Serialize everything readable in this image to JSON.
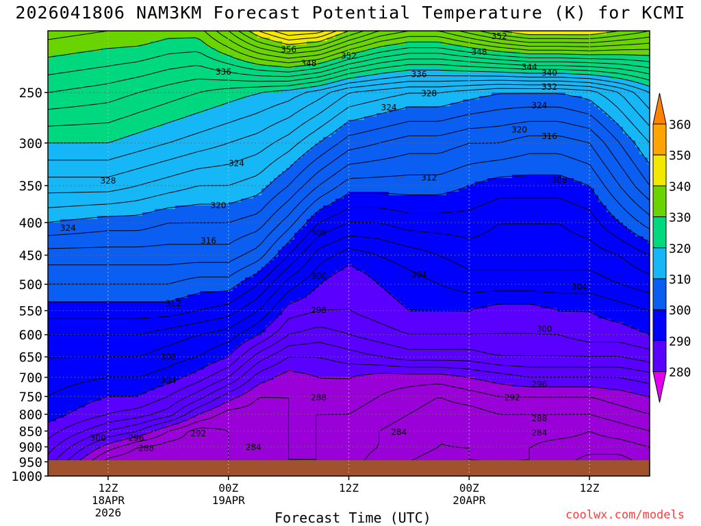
{
  "title": "2026041806 NAM3KM Forecast Potential Temperature (K) for KCMI",
  "credit": "coolwx.com/models",
  "chart_data": {
    "type": "heatmap",
    "title": "2026041806 NAM3KM Forecast Potential Temperature (K) for KCMI",
    "xlabel": "Forecast Time (UTC)",
    "ylabel": "",
    "y_scale": "log",
    "y_inverted": true,
    "ylim": [
      1000,
      200
    ],
    "xlim_hours": [
      0,
      60
    ],
    "y_ticks": [
      250,
      300,
      350,
      400,
      450,
      500,
      550,
      600,
      650,
      700,
      750,
      800,
      850,
      900,
      950,
      1000
    ],
    "x_ticks": [
      {
        "hour": 6,
        "label": [
          "12Z",
          "18APR",
          "2026"
        ]
      },
      {
        "hour": 18,
        "label": [
          "00Z",
          "19APR"
        ]
      },
      {
        "hour": 30,
        "label": [
          "12Z"
        ]
      },
      {
        "hour": 42,
        "label": [
          "00Z",
          "20APR"
        ]
      },
      {
        "hour": 54,
        "label": [
          "12Z"
        ]
      }
    ],
    "grid": true,
    "colorbar": {
      "levels": [
        280,
        290,
        300,
        310,
        320,
        330,
        340,
        350,
        360
      ],
      "labels": [
        "280",
        "290",
        "300",
        "310",
        "320",
        "330",
        "340",
        "350",
        "360"
      ],
      "colors": [
        "#9a00d8",
        "#5a00ff",
        "#0000ff",
        "#0a5ef2",
        "#16b7f6",
        "#00d880",
        "#6ad400",
        "#f2e800",
        "#ffa400"
      ],
      "below_color": "#e200ee",
      "above_color": "#ff8200"
    },
    "terrain_color": "#a0522d",
    "theta_field": {
      "hours": [
        0,
        6,
        9,
        12,
        15,
        18,
        21,
        24,
        27,
        30,
        33,
        36,
        39,
        42,
        45,
        48,
        51,
        54,
        57,
        60
      ],
      "pressure": [
        1000,
        950,
        900,
        850,
        800,
        750,
        700,
        650,
        600,
        550,
        500,
        450,
        400,
        350,
        300,
        250,
        200
      ],
      "theta": [
        [
          294,
          282,
          282,
          284,
          285,
          286,
          286,
          287,
          287,
          286,
          284,
          283,
          282,
          283,
          283,
          283,
          282,
          279,
          279,
          282
        ],
        [
          295,
          285,
          284,
          285,
          285,
          286,
          287,
          288,
          288,
          287,
          285,
          284,
          283,
          284,
          284,
          284,
          283,
          281,
          281,
          283
        ],
        [
          297,
          289,
          286,
          285,
          285,
          286,
          287,
          288,
          288,
          287,
          286,
          285,
          284,
          284,
          285,
          284,
          283,
          283,
          283,
          284
        ],
        [
          299,
          294,
          292,
          288,
          285,
          286,
          287,
          288,
          288,
          287,
          286,
          285,
          284,
          285,
          285,
          285,
          285,
          284,
          285,
          286
        ],
        [
          301,
          298,
          297,
          295,
          290,
          287,
          287,
          288,
          288,
          288,
          287,
          286,
          285,
          285,
          286,
          286,
          286,
          286,
          287,
          288
        ],
        [
          302,
          300,
          300,
          298,
          295,
          291,
          288,
          288,
          289,
          289,
          288,
          287,
          286,
          287,
          288,
          288,
          288,
          288,
          289,
          290
        ],
        [
          303,
          302,
          302,
          301,
          299,
          296,
          291,
          289,
          290,
          290,
          289,
          289,
          289,
          290,
          291,
          292,
          292,
          292,
          292,
          293
        ],
        [
          304,
          304,
          304,
          303,
          302,
          300,
          295,
          292,
          292,
          293,
          294,
          295,
          295,
          295,
          296,
          296,
          296,
          296,
          296,
          297
        ],
        [
          306,
          306,
          306,
          305,
          304,
          303,
          300,
          296,
          295,
          296,
          297,
          298,
          298,
          298,
          298,
          298,
          298,
          299,
          299,
          300
        ],
        [
          309,
          309,
          309,
          309,
          308,
          307,
          304,
          299,
          298,
          298,
          299,
          300,
          300,
          300,
          299,
          299,
          300,
          300,
          301,
          302
        ],
        [
          312,
          312,
          312,
          312,
          311,
          311,
          308,
          303,
          300,
          298,
          300,
          301,
          302,
          303,
          303,
          303,
          303,
          303,
          304,
          305
        ],
        [
          315,
          315,
          315,
          315,
          315,
          315,
          313,
          308,
          303,
          301,
          302,
          303,
          304,
          305,
          305,
          305,
          305,
          305,
          306,
          308
        ],
        [
          320,
          319,
          319,
          318,
          318,
          318,
          317,
          313,
          308,
          306,
          306,
          307,
          307,
          307,
          306,
          306,
          306,
          307,
          310,
          313
        ],
        [
          325,
          325,
          324,
          323,
          322,
          322,
          321,
          318,
          314,
          311,
          311,
          311,
          311,
          310,
          309,
          309,
          309,
          310,
          314,
          318
        ],
        [
          330,
          330,
          329,
          328,
          327,
          326,
          325,
          323,
          320,
          317,
          316,
          315,
          315,
          314,
          314,
          313,
          313,
          314,
          318,
          322
        ],
        [
          336,
          335,
          334,
          333,
          332,
          331,
          330,
          329,
          327,
          324,
          323,
          322,
          322,
          321,
          320,
          320,
          320,
          321,
          324,
          328
        ],
        [
          343,
          342,
          342,
          341,
          341,
          346,
          352,
          356,
          355,
          350,
          346,
          344,
          344,
          347,
          350,
          352,
          352,
          352,
          350,
          348
        ]
      ]
    },
    "contour_labels": [
      {
        "text": "356",
        "hour": 24,
        "pressure": 214
      },
      {
        "text": "348",
        "hour": 26,
        "pressure": 225
      },
      {
        "text": "352",
        "hour": 30,
        "pressure": 219
      },
      {
        "text": "352",
        "hour": 45,
        "pressure": 204
      },
      {
        "text": "348",
        "hour": 43,
        "pressure": 216
      },
      {
        "text": "344",
        "hour": 48,
        "pressure": 228
      },
      {
        "text": "340",
        "hour": 50,
        "pressure": 233
      },
      {
        "text": "336",
        "hour": 17.5,
        "pressure": 232
      },
      {
        "text": "336",
        "hour": 37,
        "pressure": 234
      },
      {
        "text": "332",
        "hour": 50,
        "pressure": 245
      },
      {
        "text": "328",
        "hour": 38,
        "pressure": 251
      },
      {
        "text": "324",
        "hour": 34,
        "pressure": 264
      },
      {
        "text": "324",
        "hour": 49,
        "pressure": 262
      },
      {
        "text": "320",
        "hour": 47,
        "pressure": 286
      },
      {
        "text": "316",
        "hour": 50,
        "pressure": 293
      },
      {
        "text": "312",
        "hour": 38,
        "pressure": 340
      },
      {
        "text": "308",
        "hour": 51,
        "pressure": 343
      },
      {
        "text": "328",
        "hour": 6,
        "pressure": 344
      },
      {
        "text": "324",
        "hour": 18.8,
        "pressure": 323
      },
      {
        "text": "320",
        "hour": 17,
        "pressure": 376
      },
      {
        "text": "324",
        "hour": 2,
        "pressure": 408
      },
      {
        "text": "316",
        "hour": 16,
        "pressure": 427
      },
      {
        "text": "308",
        "hour": 27,
        "pressure": 415
      },
      {
        "text": "300",
        "hour": 27,
        "pressure": 485
      },
      {
        "text": "304",
        "hour": 37,
        "pressure": 483
      },
      {
        "text": "304",
        "hour": 53,
        "pressure": 505
      },
      {
        "text": "312",
        "hour": 12.5,
        "pressure": 536
      },
      {
        "text": "298",
        "hour": 27,
        "pressure": 549
      },
      {
        "text": "300",
        "hour": 49.5,
        "pressure": 588
      },
      {
        "text": "308",
        "hour": 12,
        "pressure": 650
      },
      {
        "text": "304",
        "hour": 12,
        "pressure": 708
      },
      {
        "text": "296",
        "hour": 49,
        "pressure": 718
      },
      {
        "text": "288",
        "hour": 27,
        "pressure": 753
      },
      {
        "text": "292",
        "hour": 46.3,
        "pressure": 753
      },
      {
        "text": "288",
        "hour": 49,
        "pressure": 812
      },
      {
        "text": "284",
        "hour": 35,
        "pressure": 853
      },
      {
        "text": "284",
        "hour": 49,
        "pressure": 856
      },
      {
        "text": "300",
        "hour": 5,
        "pressure": 872
      },
      {
        "text": "296",
        "hour": 8.8,
        "pressure": 872
      },
      {
        "text": "292",
        "hour": 15,
        "pressure": 858
      },
      {
        "text": "288",
        "hour": 9.8,
        "pressure": 905
      },
      {
        "text": "284",
        "hour": 20.5,
        "pressure": 901
      }
    ]
  }
}
